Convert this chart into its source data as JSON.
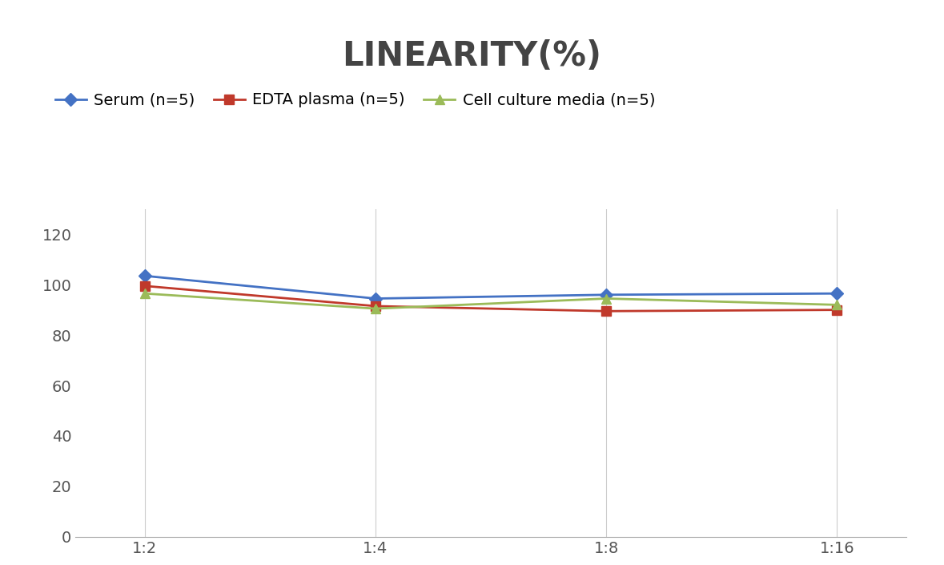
{
  "title": "LINEARITY(%)",
  "title_fontsize": 30,
  "title_fontweight": "bold",
  "title_color": "#444444",
  "x_labels": [
    "1:2",
    "1:4",
    "1:8",
    "1:16"
  ],
  "x_positions": [
    0,
    1,
    2,
    3
  ],
  "series": [
    {
      "label": "Serum (n=5)",
      "values": [
        103.5,
        94.5,
        96.0,
        96.5
      ],
      "color": "#4472C4",
      "marker": "D",
      "markersize": 8,
      "linewidth": 2
    },
    {
      "label": "EDTA plasma (n=5)",
      "values": [
        99.5,
        91.5,
        89.5,
        90.0
      ],
      "color": "#C0392B",
      "marker": "s",
      "markersize": 8,
      "linewidth": 2
    },
    {
      "label": "Cell culture media (n=5)",
      "values": [
        96.5,
        90.5,
        94.5,
        92.0
      ],
      "color": "#9BBB59",
      "marker": "^",
      "markersize": 8,
      "linewidth": 2
    }
  ],
  "ylim": [
    0,
    130
  ],
  "yticks": [
    0,
    20,
    40,
    60,
    80,
    100,
    120
  ],
  "grid_color": "#CCCCCC",
  "grid_linewidth": 0.8,
  "background_color": "#FFFFFF",
  "legend_fontsize": 14,
  "tick_fontsize": 14,
  "spine_color": "#AAAAAA"
}
